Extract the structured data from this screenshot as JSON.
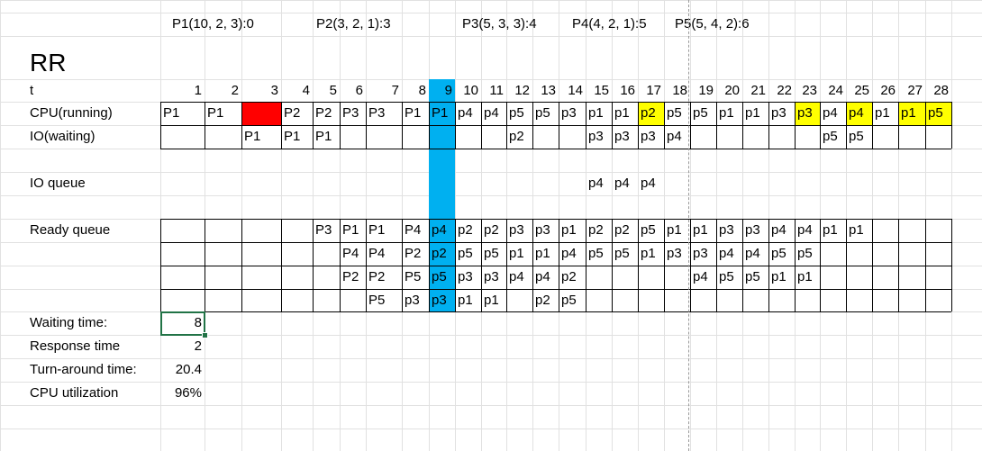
{
  "title": "RR",
  "process_specs": [
    "P1(10, 2, 3):0",
    "P2(3, 2, 1):3",
    "P3(5, 3, 3):4",
    "P4(4, 2, 1):5",
    "P5(5, 4, 2):6"
  ],
  "labels": {
    "t": "t",
    "cpu": "CPU(running)",
    "io": "IO(waiting)",
    "io_queue": "IO queue",
    "ready_queue": "Ready queue",
    "waiting_time": "Waiting time:",
    "response_time": "Response time",
    "turnaround_time": "Turn-around time:",
    "cpu_utilization": "CPU utilization"
  },
  "timeline": [
    "1",
    "2",
    "3",
    "4",
    "5",
    "6",
    "7",
    "8",
    "9",
    "10",
    "11",
    "12",
    "13",
    "14",
    "15",
    "16",
    "17",
    "18",
    "19",
    "20",
    "21",
    "22",
    "23",
    "24",
    "25",
    "26",
    "27",
    "28"
  ],
  "cpu": [
    "P1",
    "P1",
    "",
    "P2",
    "P2",
    "P3",
    "P3",
    "P1",
    "P1",
    "p4",
    "p4",
    "p5",
    "p5",
    "p3",
    "p1",
    "p1",
    "p2",
    "p5",
    "p5",
    "p1",
    "p1",
    "p3",
    "p3",
    "p4",
    "p4",
    "p1",
    "p1",
    "p5"
  ],
  "io": [
    "",
    "",
    "P1",
    "P1",
    "P1",
    "",
    "",
    "",
    "",
    "",
    "",
    "p2",
    "",
    "",
    "p3",
    "p3",
    "p3",
    "p4",
    "",
    "",
    "",
    "",
    "",
    "p5",
    "p5",
    "",
    "",
    ""
  ],
  "io_queue": [
    "",
    "",
    "",
    "",
    "",
    "",
    "",
    "",
    "",
    "",
    "",
    "",
    "",
    "",
    "p4",
    "p4",
    "p4",
    "",
    "",
    "",
    "",
    "",
    "",
    "",
    "",
    "",
    "",
    ""
  ],
  "ready_queue": [
    [
      "",
      "",
      "",
      "",
      "P3",
      "P1",
      "P1",
      "P4",
      "p4",
      "p2",
      "p2",
      "p3",
      "p3",
      "p1",
      "p2",
      "p2",
      "p5",
      "p1",
      "p1",
      "p3",
      "p3",
      "p4",
      "p4",
      "p1",
      "p1",
      "",
      "",
      ""
    ],
    [
      "",
      "",
      "",
      "",
      "",
      "P4",
      "P4",
      "P2",
      "p2",
      "p5",
      "p5",
      "p1",
      "p1",
      "p4",
      "p5",
      "p5",
      "p1",
      "p3",
      "p3",
      "p4",
      "p4",
      "p5",
      "p5",
      "",
      "",
      "",
      "",
      ""
    ],
    [
      "",
      "",
      "",
      "",
      "",
      "P2",
      "P2",
      "P5",
      "p5",
      "p3",
      "p3",
      "p4",
      "p4",
      "p2",
      "",
      "",
      "",
      "",
      "p4",
      "p5",
      "p5",
      "p1",
      "p1",
      "",
      "",
      "",
      "",
      ""
    ],
    [
      "",
      "",
      "",
      "",
      "",
      "",
      "P5",
      "p3",
      "p3",
      "p1",
      "p1",
      "",
      "p2",
      "p5",
      "",
      "",
      "",
      "",
      "",
      "",
      "",
      "",
      "",
      "",
      "",
      "",
      "",
      ""
    ]
  ],
  "results": {
    "waiting_time": "8",
    "response_time": "2",
    "turnaround_time": "20.4",
    "cpu_utilization": "96%"
  },
  "colors": {
    "idle_highlight": "#ff0000",
    "column_highlight": "#00b0f0",
    "cell_highlight": "#ffff00",
    "grid_light": "#e1e1e1",
    "border": "#000000"
  }
}
